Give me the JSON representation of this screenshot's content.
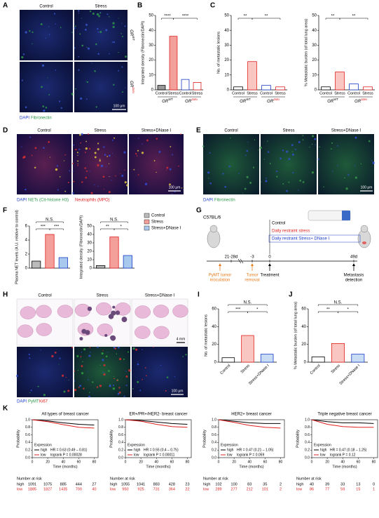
{
  "panel_labels": [
    "A",
    "B",
    "C",
    "D",
    "E",
    "F",
    "G",
    "H",
    "I",
    "J",
    "K"
  ],
  "panel_a": {
    "columns": [
      "Control",
      "Stress"
    ],
    "rows": [
      {
        "base": "GR",
        "sup": "WT"
      },
      {
        "base": "GR",
        "sup": "ΔMu"
      }
    ],
    "stains": [
      "DAPI",
      "Fibronectin"
    ],
    "scale": "100 μm"
  },
  "panel_d": {
    "columns": [
      "Control",
      "Stress",
      "Stress+DNase I"
    ],
    "stains": [
      "DAPI",
      "NETs (Cit-histone H3)",
      "Neutrophils (MPO)"
    ],
    "scale": "100 μm"
  },
  "panel_e": {
    "columns": [
      "Control",
      "Stress",
      "Stress+DNase I"
    ],
    "stains": [
      "DAPI",
      "Fibronectin"
    ],
    "scale": "100 μm"
  },
  "panel_f": {
    "legend": [
      "Control",
      "Stress",
      "Stress+DNase I"
    ],
    "legend_colors": [
      "#bbbbbb",
      "#f4a09a",
      "#a8c8ee"
    ]
  },
  "panel_g": {
    "strain": "C57BL/6",
    "arms": [
      "Control",
      "Daily restraint stress",
      "Daily restraint Stress+ DNase I"
    ],
    "arm_colors": [
      "#000000",
      "#e02020",
      "#1a3cc8"
    ],
    "timeline": [
      "21-28d",
      "-3",
      "0",
      "49d"
    ],
    "events": [
      [
        "PyMT tumor",
        "inoculation"
      ],
      [
        "Tumor",
        "removal"
      ],
      [
        "Treatment"
      ],
      [
        "Metastasis",
        "detection"
      ]
    ],
    "event_colors": [
      "#e87d1e",
      "#e87d1e",
      "#000000",
      "#000000"
    ]
  },
  "panel_h": {
    "columns": [
      "Control",
      "Stress",
      "Stress+DNase I"
    ],
    "scale_top": "4 mm",
    "stains": [
      "DAPI",
      "PyMT",
      "Ki67"
    ],
    "scale": "100 μm"
  },
  "chart_data": [
    {
      "type": "bar",
      "ylabel": "Integrated density (Fibronectin/DAPI)",
      "categories": [
        "Control",
        "Stress",
        "Control",
        "Stress"
      ],
      "groups": [
        {
          "base": "GR",
          "sup": "WT"
        },
        {
          "base": "GR",
          "sup": "ΔMu"
        }
      ],
      "values": [
        3,
        36,
        7,
        5
      ],
      "colors": [
        "#000000",
        "#e02020",
        "#1a3cc8",
        "#e02020"
      ],
      "fills": [
        "#999999",
        "#f4a09a",
        "#ffffff",
        "#ffffff"
      ],
      "ylim": [
        0,
        50
      ],
      "yticks": [
        0,
        10,
        20,
        30,
        40,
        50
      ],
      "annotations": [
        "****",
        "****"
      ]
    },
    {
      "type": "bar",
      "ylabel": "No. of metastatic lesions",
      "categories": [
        "Control",
        "Stress",
        "Control",
        "Stress"
      ],
      "groups": [
        {
          "base": "GR",
          "sup": "WT"
        },
        {
          "base": "GR",
          "sup": "ΔMu"
        }
      ],
      "values": [
        2,
        19,
        3,
        2
      ],
      "colors": [
        "#000000",
        "#e02020",
        "#1a3cc8",
        "#e02020"
      ],
      "fills": [
        "#ffffff",
        "#f9c6c2",
        "#ffffff",
        "#ffffff"
      ],
      "ylim": [
        0,
        50
      ],
      "yticks": [
        0,
        10,
        20,
        30,
        40,
        50
      ],
      "annotations": [
        "**",
        "**"
      ]
    },
    {
      "type": "bar",
      "ylabel": "% Metastatic burden (of total lung area)",
      "categories": [
        "Control",
        "Stress",
        "Control",
        "Stress"
      ],
      "groups": [
        {
          "base": "GR",
          "sup": "WT"
        },
        {
          "base": "GR",
          "sup": "ΔMu"
        }
      ],
      "values": [
        2,
        12,
        4,
        2
      ],
      "colors": [
        "#000000",
        "#e02020",
        "#1a3cc8",
        "#e02020"
      ],
      "fills": [
        "#ffffff",
        "#f9c6c2",
        "#ffffff",
        "#ffffff"
      ],
      "ylim": [
        0,
        50
      ],
      "yticks": [
        0,
        10,
        20,
        30,
        40,
        50
      ],
      "annotations": [
        "**",
        "**"
      ]
    },
    {
      "type": "bar",
      "ylabel": "Plasma NET levels (A.U. relative to control)",
      "values": [
        1,
        4.8,
        1.5
      ],
      "colors": [
        "#000000",
        "#e02020",
        "#1a3cc8"
      ],
      "fills": [
        "#bbbbbb",
        "#f4a09a",
        "#a8c8ee"
      ],
      "ylim": [
        0,
        6
      ],
      "yticks": [
        0,
        2,
        4,
        6
      ],
      "annotations": [
        "N.S.",
        "***",
        "***"
      ]
    },
    {
      "type": "bar",
      "ylabel": "Integrated density (Fibronectin/DAPI)",
      "values": [
        3,
        37,
        15
      ],
      "colors": [
        "#000000",
        "#e02020",
        "#1a3cc8"
      ],
      "fills": [
        "#bbbbbb",
        "#f4a09a",
        "#a8c8ee"
      ],
      "ylim": [
        0,
        50
      ],
      "yticks": [
        0,
        10,
        20,
        30,
        40,
        50
      ],
      "annotations": [
        "N.S.",
        "**",
        "*"
      ]
    },
    {
      "type": "bar",
      "ylabel": "No. of metastatic lesions",
      "categories": [
        "Control",
        "Stress",
        "Stress+DNase I"
      ],
      "values": [
        5,
        30,
        9
      ],
      "colors": [
        "#000000",
        "#e02020",
        "#1a3cc8"
      ],
      "fills": [
        "#ffffff",
        "#f9c6c2",
        "#c8dcf4"
      ],
      "ylim": [
        0,
        60
      ],
      "yticks": [
        0,
        20,
        40,
        60
      ],
      "annotations": [
        "N.S.",
        "***",
        "*"
      ]
    },
    {
      "type": "bar",
      "ylabel": "% Metastatic burden (of total lung area)",
      "categories": [
        "Control",
        "Stress",
        "Stress+DNase I"
      ],
      "values": [
        6,
        21,
        9
      ],
      "colors": [
        "#000000",
        "#e02020",
        "#1a3cc8"
      ],
      "fills": [
        "#ffffff",
        "#f9c6c2",
        "#c8dcf4"
      ],
      "ylim": [
        0,
        60
      ],
      "yticks": [
        0,
        20,
        40,
        60
      ],
      "annotations": [
        "N.S.",
        "**",
        "*"
      ]
    },
    {
      "type": "km",
      "title": "All types of breast cancer",
      "xlabel": "Time (months)",
      "ylabel": "Probability",
      "x": [
        0,
        20,
        40,
        60,
        80
      ],
      "series": [
        {
          "name": "high",
          "color": "#000000",
          "values": [
            1,
            0.97,
            0.92,
            0.88,
            0.86
          ]
        },
        {
          "name": "low",
          "color": "#e02020",
          "values": [
            1,
            0.95,
            0.87,
            0.8,
            0.78
          ]
        }
      ],
      "xlim": [
        0,
        85
      ],
      "ylim": [
        0,
        1
      ],
      "xticks": [
        0,
        20,
        40,
        60,
        80
      ],
      "yticks": [
        {
          "value": 0,
          "label": "0.0"
        },
        {
          "value": 0.2,
          "label": "0.2"
        },
        {
          "value": 0.4,
          "label": "0.4"
        },
        {
          "value": 0.6,
          "label": "0.6"
        },
        {
          "value": 0.8,
          "label": "0.8"
        },
        {
          "value": 1,
          "label": "1.0"
        }
      ],
      "legend_title": "Expression",
      "stats": [
        "HR = 0.63 (0.49 – 0.81)",
        "logrank P = 0.00028"
      ],
      "risk_title": "Number at risk",
      "at_risk": [
        [
          1091,
          1075,
          885,
          444,
          27
        ],
        [
          1885,
          1827,
          1435,
          700,
          40
        ]
      ]
    },
    {
      "type": "km",
      "title": "ER+/PR+/HER2- breast cancer",
      "xlabel": "Time (months)",
      "ylabel": "Probability",
      "x": [
        0,
        20,
        40,
        60,
        80
      ],
      "series": [
        {
          "name": "high",
          "color": "#000000",
          "values": [
            1,
            0.98,
            0.94,
            0.9,
            0.88
          ]
        },
        {
          "name": "low",
          "color": "#e02020",
          "values": [
            1,
            0.96,
            0.88,
            0.82,
            0.8
          ]
        }
      ],
      "xlim": [
        0,
        85
      ],
      "ylim": [
        0,
        1
      ],
      "xticks": [
        0,
        20,
        40,
        60,
        80
      ],
      "yticks": [
        {
          "value": 0,
          "label": "0.0"
        },
        {
          "value": 0.2,
          "label": "0.2"
        },
        {
          "value": 0.4,
          "label": "0.4"
        },
        {
          "value": 0.6,
          "label": "0.6"
        },
        {
          "value": 0.8,
          "label": "0.8"
        },
        {
          "value": 1,
          "label": "1.0"
        }
      ],
      "legend_title": "Expression",
      "stats": [
        "HR = 0.55 (0.4 – 0.75)",
        "logrank P = 0.00011"
      ],
      "risk_title": "Number at risk",
      "at_risk": [
        [
          1055,
          1041,
          883,
          428,
          23
        ],
        [
          950,
          925,
          731,
          364,
          22
        ]
      ]
    },
    {
      "type": "km",
      "title": "HER2+ breast cancer",
      "xlabel": "Time (months)",
      "ylabel": "Probability",
      "x": [
        0,
        20,
        40,
        60,
        80
      ],
      "series": [
        {
          "name": "high",
          "color": "#000000",
          "values": [
            1,
            0.96,
            0.92,
            0.9,
            0.9
          ]
        },
        {
          "name": "low",
          "color": "#e02020",
          "values": [
            1,
            0.93,
            0.85,
            0.8,
            0.78
          ]
        }
      ],
      "xlim": [
        0,
        85
      ],
      "ylim": [
        0,
        1
      ],
      "xticks": [
        0,
        20,
        40,
        60,
        80
      ],
      "yticks": [
        {
          "value": 0,
          "label": "0.0"
        },
        {
          "value": 0.2,
          "label": "0.2"
        },
        {
          "value": 0.4,
          "label": "0.4"
        },
        {
          "value": 0.6,
          "label": "0.6"
        },
        {
          "value": 0.8,
          "label": "0.8"
        },
        {
          "value": 1,
          "label": "1.0"
        }
      ],
      "legend_title": "Expression",
      "stats": [
        "HR = 0.47 (0.21 – 1.05)",
        "logrank P = 0.059"
      ],
      "risk_title": "Number at risk",
      "at_risk": [
        [
          102,
          100,
          83,
          35,
          2
        ],
        [
          289,
          277,
          212,
          101,
          2
        ]
      ]
    },
    {
      "type": "km",
      "title": "Triple negative breast cancer",
      "xlabel": "Time (months)",
      "ylabel": "Probability",
      "x": [
        0,
        20,
        40,
        60,
        80
      ],
      "series": [
        {
          "name": "high",
          "color": "#000000",
          "values": [
            1,
            0.95,
            0.92,
            0.92,
            0.9
          ]
        },
        {
          "name": "low",
          "color": "#e02020",
          "values": [
            1,
            0.88,
            0.82,
            0.8,
            0.8
          ]
        }
      ],
      "xlim": [
        0,
        85
      ],
      "ylim": [
        0,
        1
      ],
      "xticks": [
        0,
        20,
        40,
        60,
        80
      ],
      "yticks": [
        {
          "value": 0,
          "label": "0.0"
        },
        {
          "value": 0.2,
          "label": "0.2"
        },
        {
          "value": 0.4,
          "label": "0.4"
        },
        {
          "value": 0.6,
          "label": "0.6"
        },
        {
          "value": 0.8,
          "label": "0.8"
        },
        {
          "value": 1,
          "label": "1.0"
        }
      ],
      "legend_title": "Expression",
      "stats": [
        "HR = 0.47 (0.18 – 1.25)",
        "logrank P = 0.12"
      ],
      "risk_title": "Number at risk",
      "at_risk": [
        [
          40,
          39,
          33,
          13,
          0
        ],
        [
          86,
          77,
          59,
          15,
          1
        ]
      ]
    }
  ]
}
